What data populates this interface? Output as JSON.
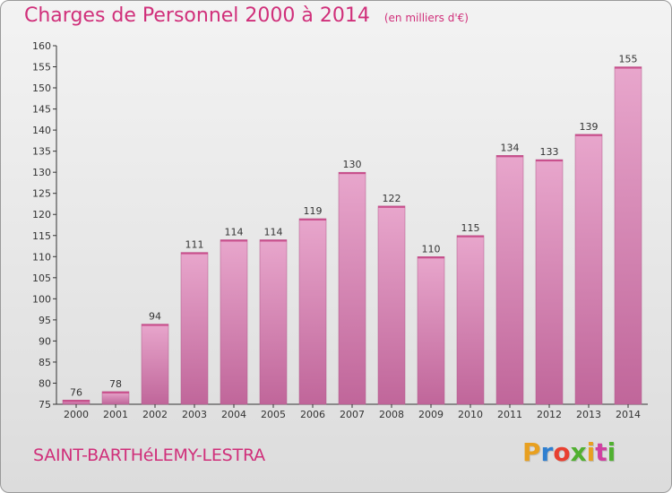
{
  "title": "Charges de Personnel 2000 à 2014",
  "unit_note": "(en milliers d'€)",
  "commune": "SAINT-BARTHéLEMY-LESTRA",
  "logo": {
    "text": "Proxiti",
    "colors": [
      "#e8a020",
      "#2f7fd0",
      "#e84030",
      "#50b030",
      "#e8a020",
      "#d040a0",
      "#50b030"
    ]
  },
  "colors": {
    "accent": "#d02f7a",
    "bar_light": "#e8a6cc",
    "bar_dark": "#c0669a"
  },
  "chart_data": {
    "type": "bar",
    "categories": [
      "2000",
      "2001",
      "2002",
      "2003",
      "2004",
      "2005",
      "2006",
      "2007",
      "2008",
      "2009",
      "2010",
      "2011",
      "2012",
      "2013",
      "2014"
    ],
    "values": [
      76,
      78,
      94,
      111,
      114,
      114,
      119,
      130,
      122,
      110,
      115,
      134,
      133,
      139,
      155
    ],
    "title": "Charges de Personnel 2000 à 2014",
    "xlabel": "",
    "ylabel": "",
    "ylim": [
      75,
      160
    ],
    "yticks": [
      75,
      80,
      85,
      90,
      95,
      100,
      105,
      110,
      115,
      120,
      125,
      130,
      135,
      140,
      145,
      150,
      155,
      160
    ],
    "grid": false,
    "legend": "none"
  }
}
